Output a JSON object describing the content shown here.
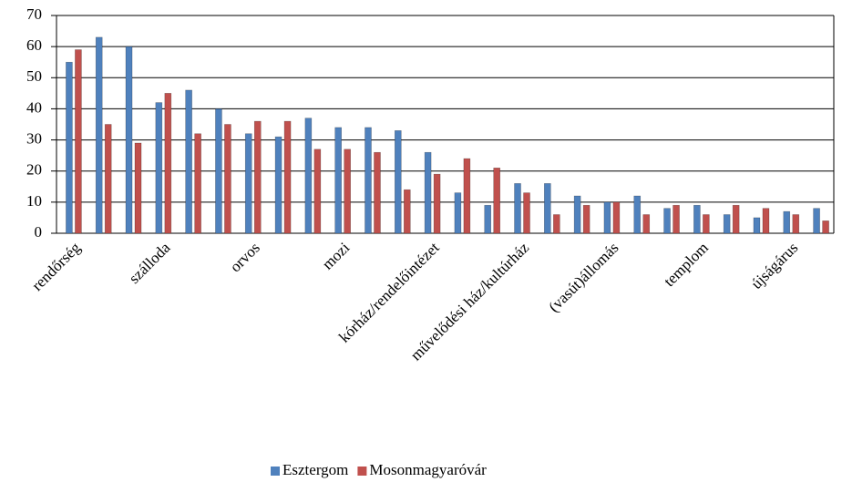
{
  "chart_data": {
    "type": "bar",
    "categories": [
      "rendőrség",
      null,
      null,
      "szálloda",
      null,
      null,
      "orvos",
      null,
      null,
      "mozi",
      null,
      null,
      "kórház/rendelőintézet",
      null,
      null,
      "művelődési ház/kultúrház",
      null,
      null,
      "(vasút)állomás",
      null,
      null,
      "templom",
      null,
      null,
      "újságárus",
      null
    ],
    "series": [
      {
        "name": "Esztergom",
        "color": "#4f81bd",
        "values": [
          55,
          63,
          60,
          42,
          46,
          40,
          32,
          31,
          37,
          34,
          34,
          33,
          26,
          13,
          9,
          16,
          16,
          12,
          10,
          12,
          8,
          9,
          6,
          5,
          7,
          8
        ]
      },
      {
        "name": "Mosonmagyaróvár",
        "color": "#c0504d",
        "values": [
          59,
          35,
          29,
          45,
          32,
          35,
          36,
          36,
          27,
          27,
          26,
          14,
          19,
          24,
          21,
          13,
          6,
          9,
          10,
          6,
          9,
          6,
          9,
          8,
          6,
          4
        ]
      }
    ],
    "ylim": [
      0,
      70
    ],
    "yticks": [
      0,
      10,
      20,
      30,
      40,
      50,
      60,
      70
    ],
    "grid": true,
    "legend": "bottom"
  }
}
